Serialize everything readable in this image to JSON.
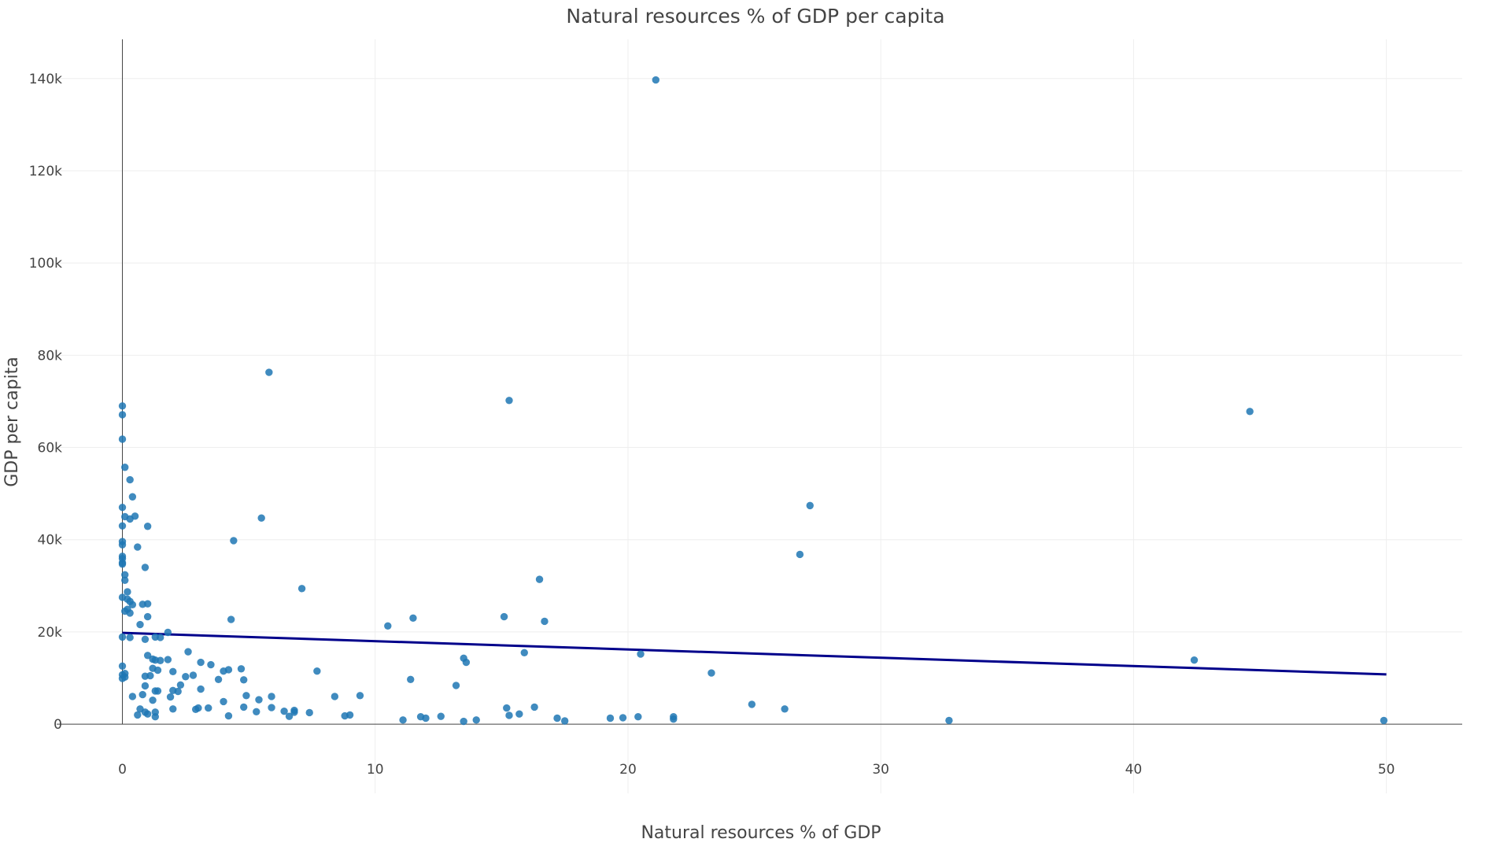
{
  "chart_data": {
    "type": "scatter",
    "title": "Natural resources % of GDP per capita",
    "xlabel": "Natural resources % of GDP",
    "ylabel": "GDP per capita",
    "xlim": [
      -2.6,
      53
    ],
    "ylim": [
      -15000,
      148500
    ],
    "x_ticks": [
      0,
      10,
      20,
      30,
      40,
      50
    ],
    "x_tick_labels": [
      "0",
      "10",
      "20",
      "30",
      "40",
      "50"
    ],
    "y_ticks": [
      0,
      20000,
      40000,
      60000,
      80000,
      100000,
      120000,
      140000
    ],
    "y_tick_labels": [
      "0",
      "20k",
      "40k",
      "60k",
      "80k",
      "100k",
      "120k",
      "140k"
    ],
    "grid": true,
    "colors": {
      "points": "#1f77b4",
      "trendline": "#00008b",
      "grid": "#eeeeee",
      "axis": "#444444"
    },
    "trendline": {
      "x": [
        0,
        50
      ],
      "y": [
        19800,
        10800
      ]
    },
    "series": [
      {
        "x": [
          21.1,
          5.8,
          15.3,
          44.6,
          0.0,
          0.0,
          0.0,
          27.2,
          0.0,
          5.5,
          0.1,
          0.3,
          0.4,
          0.0,
          0.1,
          0.5,
          0.3,
          0.6,
          1.0,
          0.0,
          4.4,
          0.0,
          0.0,
          0.0,
          0.0,
          26.8,
          0.0,
          0.9,
          16.5,
          0.1,
          0.1,
          7.1,
          0.2,
          0.0,
          0.2,
          0.3,
          0.4,
          0.8,
          1.0,
          0.2,
          0.3,
          0.1,
          1.0,
          4.3,
          15.1,
          11.5,
          16.7,
          0.7,
          10.5,
          1.8,
          0.0,
          0.3,
          1.3,
          0.9,
          1.5,
          42.4,
          15.9,
          20.5,
          2.6,
          1.0,
          1.8,
          1.2,
          1.3,
          1.5,
          13.5,
          3.1,
          13.6,
          3.5,
          4.7,
          0.0,
          4.2,
          0.1,
          1.2,
          1.4,
          2.0,
          4.0,
          0.0,
          2.8,
          1.1,
          0.9,
          2.5,
          7.7,
          23.3,
          0.1,
          11.4,
          4.8,
          3.8,
          0.0,
          0.9,
          2.3,
          13.2,
          3.1,
          2.2,
          2.0,
          1.3,
          0.8,
          9.4,
          4.9,
          5.9,
          8.4,
          5.4,
          1.4,
          0.4,
          1.9,
          1.2,
          24.9,
          4.0,
          26.2,
          2.0,
          3.4,
          2.9,
          3.0,
          5.9,
          15.2,
          0.9,
          5.3,
          16.3,
          6.4,
          6.8,
          15.7,
          4.8,
          7.4,
          6.8,
          0.6,
          0.7,
          1.3,
          4.2,
          6.6,
          9.0,
          8.8,
          12.6,
          15.3,
          1.0,
          1.3,
          12.0,
          11.8,
          19.8,
          21.8,
          20.4,
          17.2,
          19.3,
          11.1,
          14.0,
          13.5,
          17.5,
          21.8,
          32.7,
          49.9
        ],
        "y": [
          139700,
          76300,
          70200,
          67800,
          69000,
          67100,
          61800,
          47400,
          47000,
          44700,
          45000,
          53000,
          49300,
          43000,
          55700,
          45100,
          44500,
          38400,
          42900,
          39600,
          39800,
          38900,
          36400,
          35900,
          35000,
          36800,
          34700,
          34000,
          31400,
          32400,
          31200,
          29400,
          28700,
          27500,
          27100,
          26600,
          25900,
          26000,
          26100,
          24900,
          24100,
          24500,
          23300,
          22700,
          23300,
          23000,
          22300,
          21600,
          21300,
          19900,
          18900,
          18800,
          18900,
          18400,
          18800,
          13900,
          15500,
          15200,
          15700,
          14900,
          14000,
          14100,
          13900,
          13800,
          14300,
          13400,
          13400,
          12900,
          12000,
          12600,
          11800,
          11000,
          12100,
          11700,
          11400,
          11500,
          10700,
          10600,
          10500,
          10400,
          10300,
          11500,
          11100,
          10200,
          9700,
          9600,
          9700,
          9900,
          8300,
          8500,
          8400,
          7600,
          7100,
          7300,
          7200,
          6400,
          6200,
          6200,
          6000,
          6000,
          5300,
          7200,
          6000,
          5900,
          5200,
          4300,
          4900,
          3300,
          3300,
          3500,
          3200,
          3500,
          3600,
          3500,
          2600,
          2700,
          3700,
          2800,
          3000,
          2200,
          3700,
          2500,
          2600,
          2000,
          3300,
          1600,
          1800,
          1700,
          2000,
          1800,
          1700,
          1900,
          2200,
          2600,
          1300,
          1600,
          1400,
          1100,
          1600,
          1300,
          1300,
          900,
          900,
          600,
          700,
          1600,
          800,
          800
        ]
      }
    ]
  }
}
